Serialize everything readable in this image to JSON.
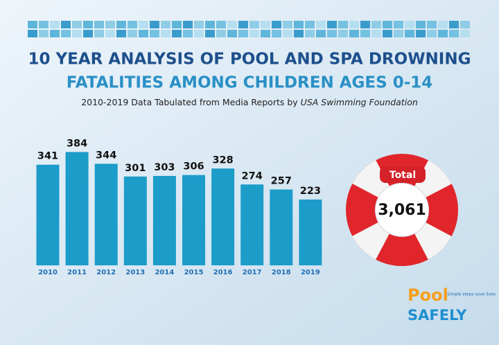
{
  "chart_data": {
    "type": "bar",
    "title": "10 YEAR ANALYSIS OF POOL AND SPA DROWNING",
    "title_line2": "FATALITIES AMONG CHILDREN AGES 0-14",
    "subtitle": "2010-2019 Data Tabulated from Media Reports by",
    "subtitle_source": "USA Swimming Foundation",
    "categories": [
      "2010",
      "2011",
      "2012",
      "2013",
      "2014",
      "2015",
      "2016",
      "2017",
      "2018",
      "2019"
    ],
    "values": [
      341,
      384,
      344,
      301,
      303,
      306,
      328,
      274,
      257,
      223
    ],
    "color": "#1c9cc9",
    "total": {
      "label": "Total",
      "value": 3061,
      "value_label": "3,061"
    }
  },
  "logo": {
    "word1": "Pool",
    "word2": "SAFELY",
    "tagline": "Simple steps save lives"
  }
}
